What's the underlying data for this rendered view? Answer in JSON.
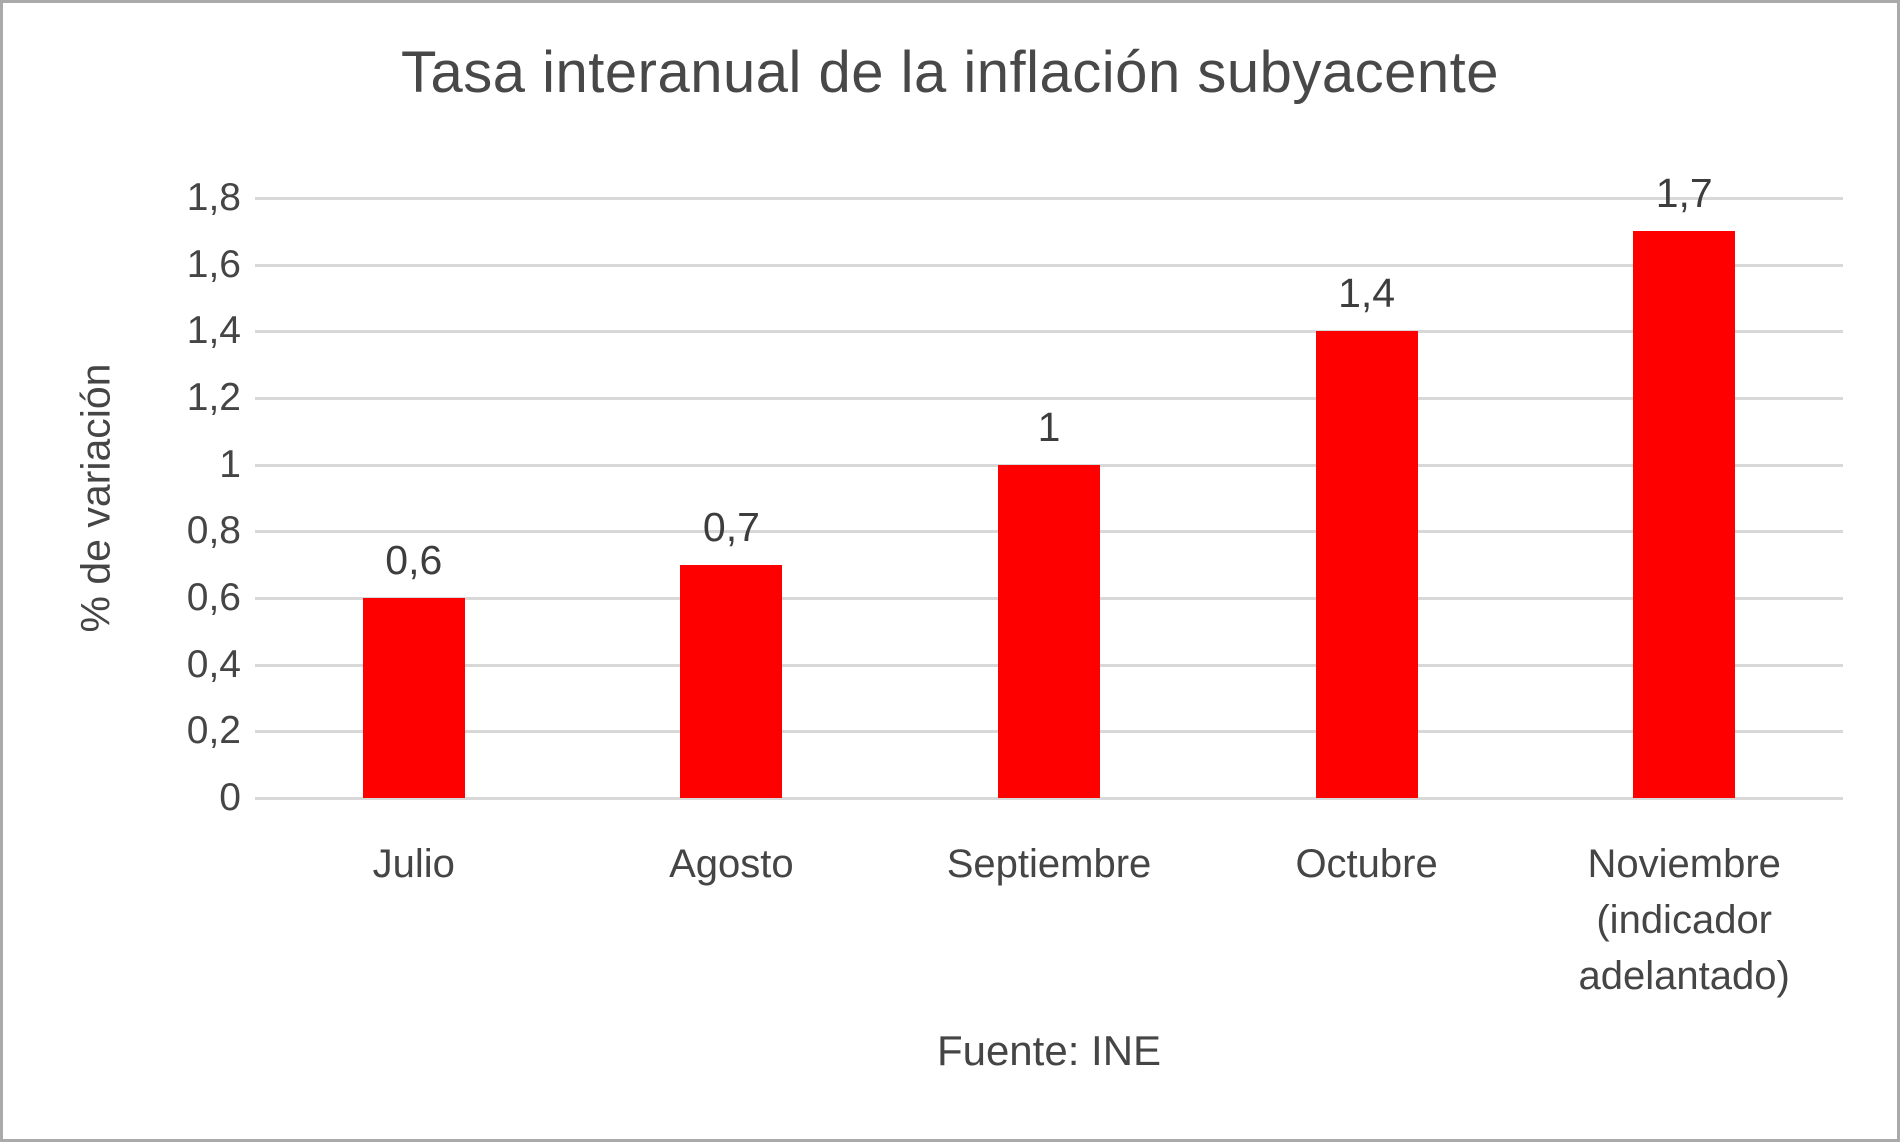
{
  "chart_data": {
    "type": "bar",
    "title": "Tasa interanual de la inflación subyacente",
    "ylabel": "% de variación",
    "xlabel": "",
    "source": "Fuente: INE",
    "categories": [
      "Julio",
      "Agosto",
      "Septiembre",
      "Octubre",
      "Noviembre (indicador adelantado)"
    ],
    "values": [
      0.6,
      0.7,
      1,
      1.4,
      1.7
    ],
    "value_labels": [
      "0,6",
      "0,7",
      "1",
      "1,4",
      "1,7"
    ],
    "ylim": [
      0,
      1.8
    ],
    "ytick_values": [
      0,
      0.2,
      0.4,
      0.6,
      0.8,
      1,
      1.2,
      1.4,
      1.6,
      1.8
    ],
    "ytick_labels": [
      "0",
      "0,2",
      "0,4",
      "0,6",
      "0,8",
      "1",
      "1,2",
      "1,4",
      "1,6",
      "1,8"
    ],
    "grid": true,
    "legend": false,
    "bar_color": "#fe0000",
    "colors": {
      "background": "#ffffff",
      "gridline": "#d8d8d8",
      "frame_border": "#aaaaaa",
      "title_text": "#484848",
      "axis_text": "#454545",
      "data_label_text": "#3d3d3d"
    }
  }
}
